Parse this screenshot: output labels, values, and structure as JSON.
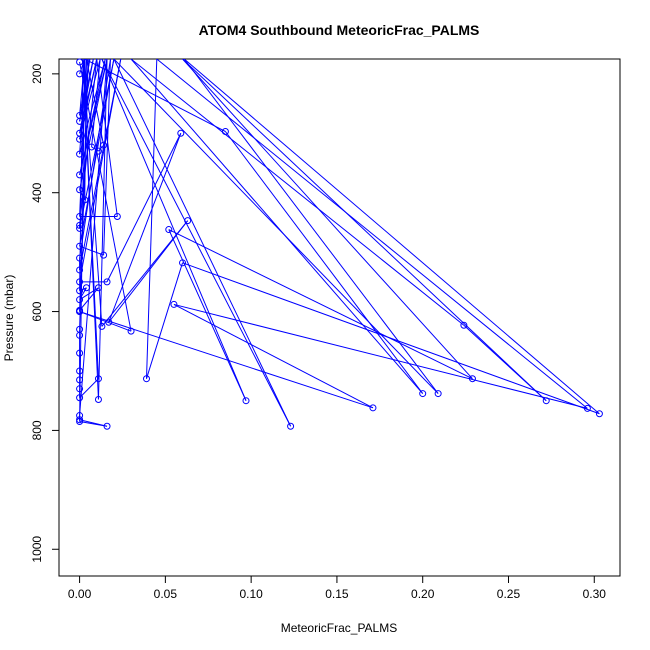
{
  "chart_data": {
    "type": "line",
    "title": "ATOM4 Southbound MeteoricFrac_PALMS",
    "xlabel": "MeteoricFrac_PALMS",
    "ylabel": "Pressure (mbar)",
    "xlim": [
      -0.012,
      0.315
    ],
    "ylim": [
      1045,
      175
    ],
    "y_reversed": true,
    "grid": false,
    "series_color": "#0000ff",
    "x_ticks": [
      0.0,
      0.05,
      0.1,
      0.15,
      0.2,
      0.25,
      0.3
    ],
    "x_tick_labels": [
      "0.00",
      "0.05",
      "0.10",
      "0.15",
      "0.20",
      "0.25",
      "0.30"
    ],
    "y_ticks": [
      200,
      400,
      600,
      800,
      1000
    ],
    "y_tick_labels": [
      "200",
      "400",
      "600",
      "800",
      "1000"
    ],
    "series": [
      {
        "values": [
          {
            "x": 0.0,
            "y": 200
          },
          {
            "x": 0.003,
            "y": 175
          },
          {
            "x": 0.0,
            "y": 270
          },
          {
            "x": 0.006,
            "y": 175
          },
          {
            "x": 0.0,
            "y": 280
          },
          {
            "x": 0.008,
            "y": 175
          },
          {
            "x": 0.0,
            "y": 300
          },
          {
            "x": 0.01,
            "y": 175
          },
          {
            "x": 0.0,
            "y": 310
          },
          {
            "x": 0.012,
            "y": 175
          },
          {
            "x": 0.007,
            "y": 323
          },
          {
            "x": 0.011,
            "y": 330
          },
          {
            "x": 0.014,
            "y": 320
          },
          {
            "x": 0.004,
            "y": 175
          },
          {
            "x": 0.0,
            "y": 335
          },
          {
            "x": 0.015,
            "y": 175
          },
          {
            "x": 0.0,
            "y": 370
          },
          {
            "x": 0.016,
            "y": 175
          },
          {
            "x": 0.0,
            "y": 395
          },
          {
            "x": 0.003,
            "y": 412
          },
          {
            "x": 0.004,
            "y": 175
          },
          {
            "x": 0.0,
            "y": 440
          },
          {
            "x": 0.022,
            "y": 440
          },
          {
            "x": 0.01,
            "y": 175
          },
          {
            "x": 0.0,
            "y": 455
          },
          {
            "x": 0.0,
            "y": 460
          },
          {
            "x": 0.02,
            "y": 175
          },
          {
            "x": 0.0,
            "y": 490
          },
          {
            "x": 0.014,
            "y": 505
          },
          {
            "x": 0.018,
            "y": 175
          },
          {
            "x": 0.0,
            "y": 510
          },
          {
            "x": 0.0,
            "y": 530
          },
          {
            "x": 0.024,
            "y": 175
          },
          {
            "x": 0.0,
            "y": 550
          },
          {
            "x": 0.016,
            "y": 550
          },
          {
            "x": 0.059,
            "y": 300
          },
          {
            "x": 0.017,
            "y": 618
          },
          {
            "x": 0.063,
            "y": 447
          },
          {
            "x": 0.013,
            "y": 625
          },
          {
            "x": 0.002,
            "y": 175
          },
          {
            "x": 0.0,
            "y": 565
          },
          {
            "x": 0.004,
            "y": 560
          },
          {
            "x": 0.0,
            "y": 580
          },
          {
            "x": 0.011,
            "y": 560
          },
          {
            "x": 0.0,
            "y": 598
          },
          {
            "x": 0.0,
            "y": 600
          },
          {
            "x": 0.005,
            "y": 175
          },
          {
            "x": 0.0,
            "y": 630
          },
          {
            "x": 0.0,
            "y": 640
          },
          {
            "x": 0.0,
            "y": 670
          },
          {
            "x": 0.0,
            "y": 700
          },
          {
            "x": 0.0,
            "y": 715
          },
          {
            "x": 0.0,
            "y": 730
          },
          {
            "x": 0.0,
            "y": 745
          },
          {
            "x": 0.011,
            "y": 713
          },
          {
            "x": 0.002,
            "y": 175
          },
          {
            "x": 0.011,
            "y": 748
          },
          {
            "x": 0.016,
            "y": 175
          },
          {
            "x": 0.0,
            "y": 775
          },
          {
            "x": 0.0,
            "y": 782
          },
          {
            "x": 0.016,
            "y": 793
          },
          {
            "x": 0.0,
            "y": 785
          },
          {
            "x": 0.003,
            "y": 175
          },
          {
            "x": 0.085,
            "y": 297
          },
          {
            "x": 0.2,
            "y": 738
          },
          {
            "x": 0.03,
            "y": 175
          },
          {
            "x": 0.224,
            "y": 623
          },
          {
            "x": 0.272,
            "y": 750
          },
          {
            "x": 0.06,
            "y": 175
          },
          {
            "x": 0.229,
            "y": 713
          },
          {
            "x": 0.052,
            "y": 462
          },
          {
            "x": 0.097,
            "y": 750
          },
          {
            "x": 0.013,
            "y": 175
          },
          {
            "x": 0.123,
            "y": 793
          },
          {
            "x": 0.02,
            "y": 175
          },
          {
            "x": 0.209,
            "y": 738
          },
          {
            "x": 0.061,
            "y": 175
          },
          {
            "x": 0.303,
            "y": 772
          },
          {
            "x": 0.06,
            "y": 518
          },
          {
            "x": 0.039,
            "y": 713
          },
          {
            "x": 0.045,
            "y": 175
          },
          {
            "x": 0.296,
            "y": 763
          },
          {
            "x": 0.055,
            "y": 588
          },
          {
            "x": 0.171,
            "y": 762
          },
          {
            "x": 0.0,
            "y": 600
          },
          {
            "x": 0.03,
            "y": 633
          },
          {
            "x": 0.0,
            "y": 180
          }
        ]
      }
    ]
  }
}
